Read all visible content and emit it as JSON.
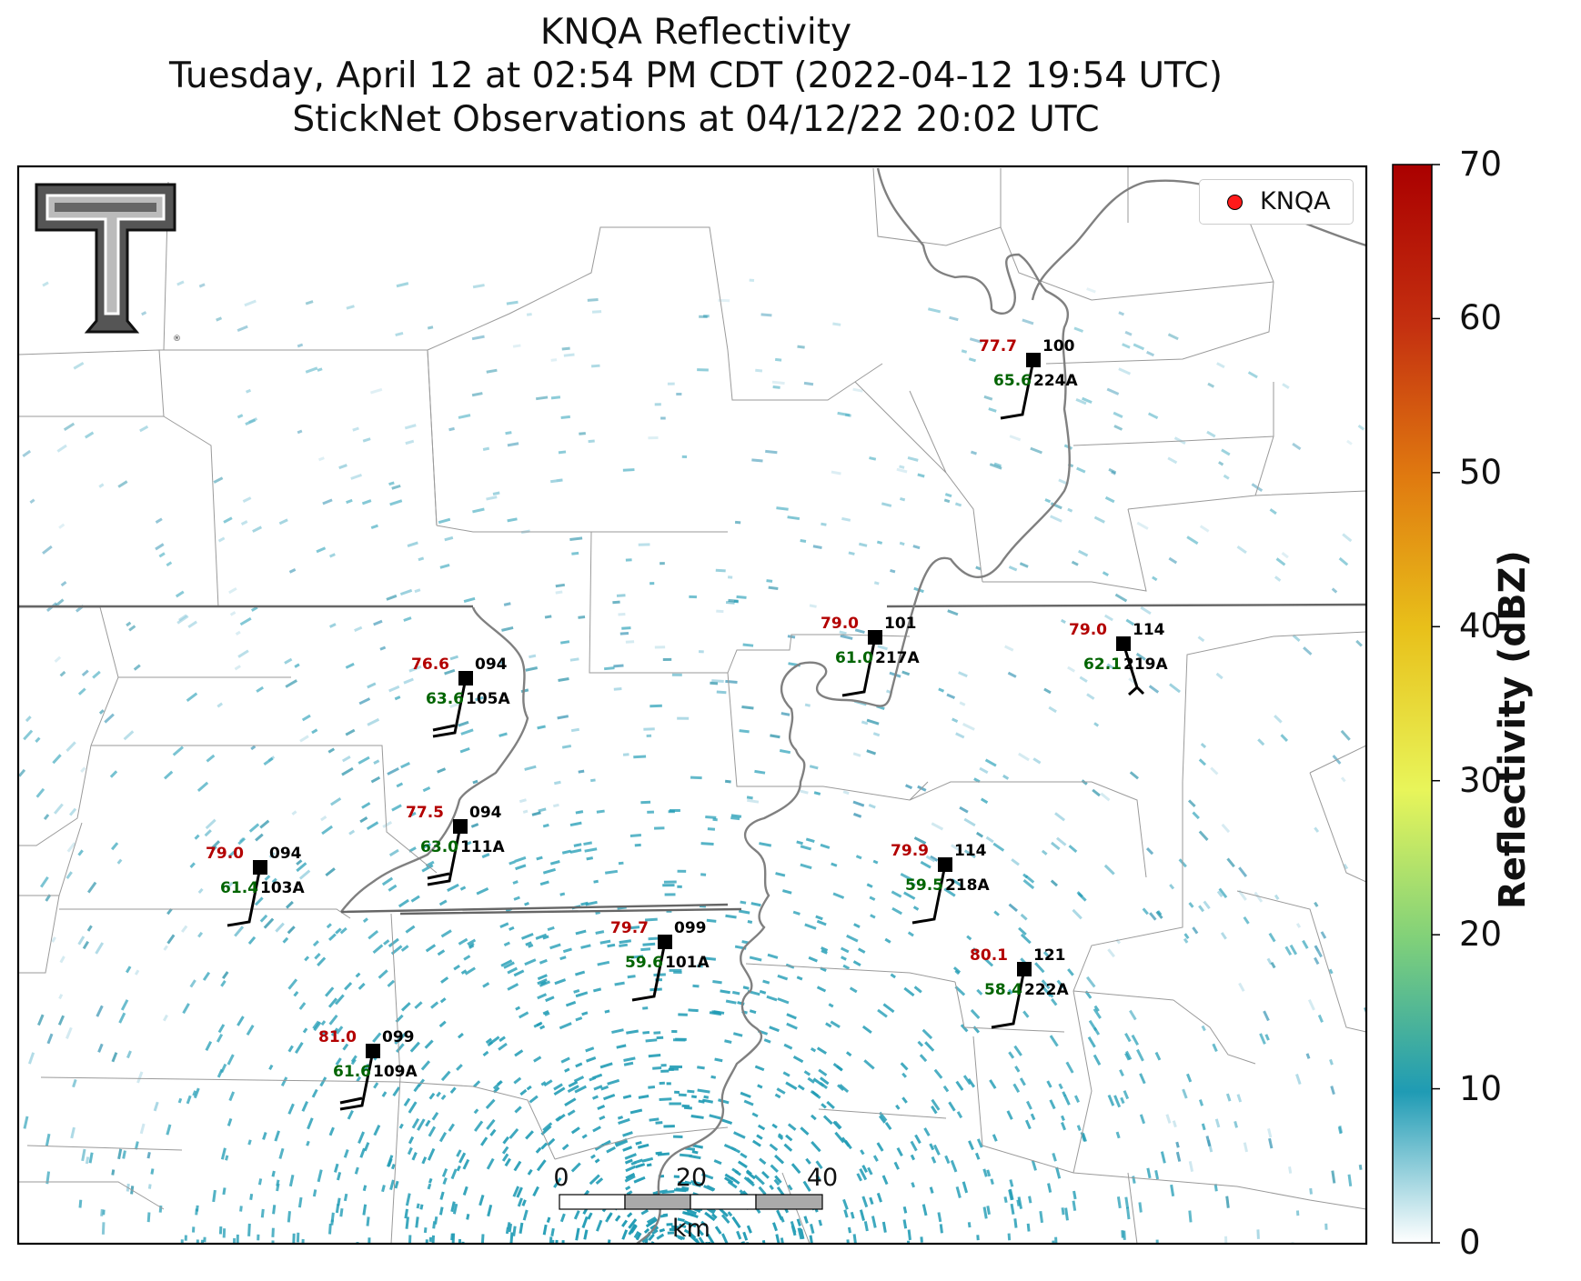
{
  "title": {
    "line1": "KNQA Reflectivity",
    "line2": "Tuesday, April 12 at 02:54 PM CDT (2022-04-12 19:54 UTC)",
    "line3": "StickNet Observations at 04/12/22 20:02 UTC"
  },
  "legend": {
    "label": "KNQA",
    "marker_color": "#ff1a1a"
  },
  "logo": {
    "icon": "texas-tech-double-t-logo"
  },
  "colorbar": {
    "label": "Reflectivity (dBZ)",
    "ticks": [
      "0",
      "10",
      "20",
      "30",
      "40",
      "50",
      "60",
      "70"
    ],
    "range": [
      0,
      70
    ],
    "colors": [
      "#ffffff",
      "#1f9bb4",
      "#7fd07a",
      "#e8f55a",
      "#e8c01a",
      "#e07a10",
      "#c43010",
      "#aa0000"
    ]
  },
  "scalebar": {
    "labels": [
      "0",
      "20",
      "40"
    ],
    "unit": "km"
  },
  "stations": [
    {
      "id": "224A",
      "temp": "77.7",
      "dew": "65.6",
      "dir": "100"
    },
    {
      "id": "217A",
      "temp": "79.0",
      "dew": "61.0",
      "dir": "101"
    },
    {
      "id": "219A",
      "temp": "79.0",
      "dew": "62.1",
      "dir": "114"
    },
    {
      "id": "105A",
      "temp": "76.6",
      "dew": "63.6",
      "dir": "094"
    },
    {
      "id": "111A",
      "temp": "77.5",
      "dew": "63.0",
      "dir": "094"
    },
    {
      "id": "103A",
      "temp": "79.0",
      "dew": "61.4",
      "dir": "094"
    },
    {
      "id": "218A",
      "temp": "79.9",
      "dew": "59.5",
      "dir": "114"
    },
    {
      "id": "101A",
      "temp": "79.7",
      "dew": "59.6",
      "dir": "099"
    },
    {
      "id": "222A",
      "temp": "80.1",
      "dew": "58.4",
      "dir": "121"
    },
    {
      "id": "109A",
      "temp": "81.0",
      "dew": "61.6",
      "dir": "099"
    }
  ]
}
